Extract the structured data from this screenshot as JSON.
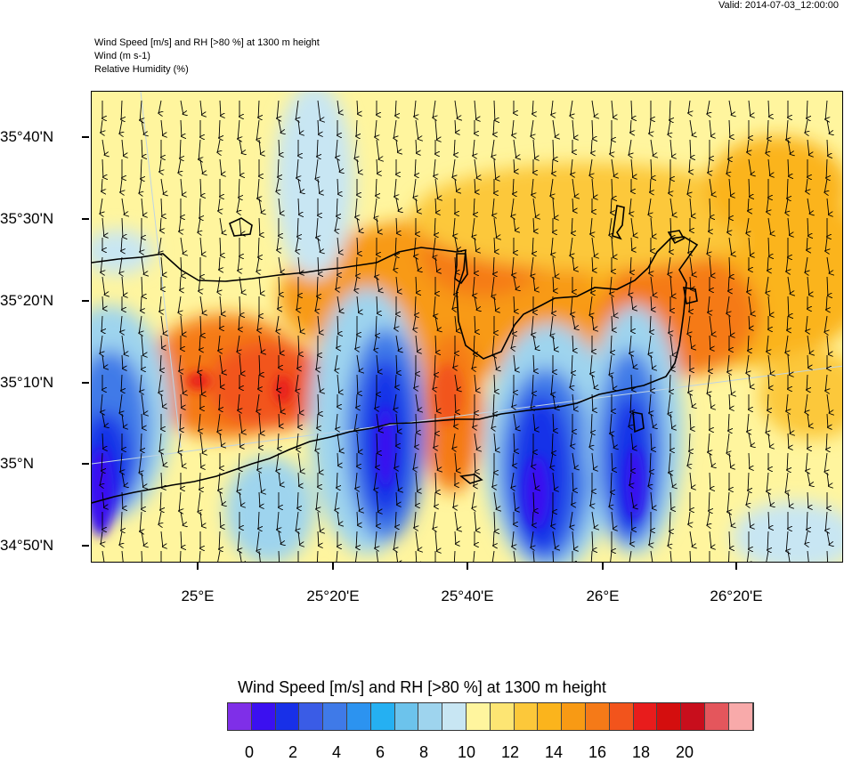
{
  "valid_time": "Valid: 2014-07-03_12:00:00",
  "header_lines": [
    "Wind Speed [m/s] and RH [>80 %] at 1300 m height",
    "Wind   (m s-1)",
    "Relative Humidity   (%)"
  ],
  "lat_labels": [
    "35°40'N",
    "35°30'N",
    "35°20'N",
    "35°10'N",
    "35°N",
    "34°50'N"
  ],
  "lon_labels": [
    "25°E",
    "25°20'E",
    "25°40'E",
    "26°E",
    "26°20'E"
  ],
  "colorbar": {
    "title": "Wind Speed [m/s] and RH [>80 %] at 1300 m height",
    "colors": [
      "#7f2fe8",
      "#3b10f0",
      "#1830e8",
      "#3a5ce6",
      "#3f7ae8",
      "#2c93f0",
      "#25b0f2",
      "#6cc3ec",
      "#9ed4ee",
      "#c8e6f3",
      "#fff59e",
      "#fde573",
      "#fcc83a",
      "#fbb41c",
      "#f89a14",
      "#f57a18",
      "#f2541c",
      "#e81c1c",
      "#d40e0e",
      "#c80e1c",
      "#e4565c",
      "#f8aaaa"
    ],
    "tick_labels": [
      "0",
      "2",
      "4",
      "6",
      "8",
      "10",
      "12",
      "14",
      "16",
      "18",
      "20"
    ]
  },
  "chart_data": {
    "type": "heatmap",
    "title": "Wind Speed [m/s] and RH [>80 %] at 1300 m height",
    "xlabel": "",
    "ylabel": "",
    "x_ticks": [
      "25°E",
      "25°20'E",
      "25°40'E",
      "26°E",
      "26°20'E"
    ],
    "y_ticks": [
      "35°40'N",
      "35°30'N",
      "35°20'N",
      "35°10'N",
      "35°N",
      "34°50'N"
    ],
    "zlim": [
      0,
      21
    ],
    "wind_direction": "predominantly from north (arrows pointing south)"
  }
}
